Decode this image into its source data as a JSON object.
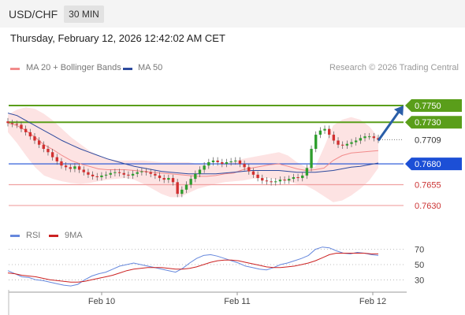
{
  "header": {
    "pair": "USD/CHF",
    "timeframe": "30 MIN"
  },
  "timestamp": "Thursday, February 12, 2026 12:42:02 AM CET",
  "legend": {
    "ma20": "MA 20 + Bollinger Bands",
    "ma50": "MA 50",
    "credit": "Research © 2026 Trading Central",
    "rsi": "RSI",
    "rsi_ma": "9MA"
  },
  "colors": {
    "ma20": "#f28b8b",
    "ma50": "#2e4a9e",
    "bands": "#fde3e3",
    "resistance": "#5a9e1a",
    "support": "#1c4fd6",
    "target": "#f0a0a0",
    "current": "#333333",
    "arrow": "#2a5ea8",
    "bull": "#2e9e2e",
    "bear": "#d23030",
    "rsi": "#6688dd",
    "rsi_ma": "#cc2222"
  },
  "chart_data": [
    {
      "type": "candlestick",
      "x_tick_labels": [
        "Feb 10",
        "Feb 11",
        "Feb 12"
      ],
      "ylim": [
        0.7612,
        0.7768
      ],
      "levels": [
        {
          "label": "0.7750",
          "value": 0.775,
          "kind": "resistance"
        },
        {
          "label": "0.7730",
          "value": 0.773,
          "kind": "resistance"
        },
        {
          "label": "0.7709",
          "value": 0.7709,
          "kind": "current"
        },
        {
          "label": "0.7680",
          "value": 0.768,
          "kind": "support"
        },
        {
          "label": "0.7655",
          "value": 0.7655,
          "kind": "target"
        },
        {
          "label": "0.7630",
          "value": 0.763,
          "kind": "target"
        }
      ],
      "close": [
        0.7729,
        0.7728,
        0.7727,
        0.7722,
        0.7718,
        0.7713,
        0.7708,
        0.7703,
        0.7698,
        0.7694,
        0.7688,
        0.7683,
        0.7678,
        0.7676,
        0.7674,
        0.7677,
        0.7673,
        0.767,
        0.7667,
        0.7665,
        0.7664,
        0.7666,
        0.7667,
        0.7669,
        0.767,
        0.7669,
        0.7667,
        0.7666,
        0.7668,
        0.767,
        0.7671,
        0.767,
        0.7668,
        0.7666,
        0.7663,
        0.7661,
        0.7663,
        0.7658,
        0.7644,
        0.7649,
        0.7655,
        0.7662,
        0.7668,
        0.7673,
        0.7678,
        0.7682,
        0.7684,
        0.7682,
        0.768,
        0.7682,
        0.7683,
        0.7684,
        0.768,
        0.7676,
        0.7671,
        0.7667,
        0.7663,
        0.766,
        0.7659,
        0.7658,
        0.7659,
        0.7661,
        0.766,
        0.7662,
        0.7664,
        0.7663,
        0.7666,
        0.7675,
        0.7698,
        0.7715,
        0.772,
        0.7722,
        0.7715,
        0.7708,
        0.7703,
        0.7702,
        0.7704,
        0.7706,
        0.7708,
        0.7711,
        0.7713,
        0.7713,
        0.7711,
        0.7709
      ],
      "ma20": [
        0.7729,
        0.7726,
        0.772,
        0.7712,
        0.7703,
        0.7697,
        0.769,
        0.7684,
        0.768,
        0.7677,
        0.7674,
        0.7673,
        0.7673,
        0.7673,
        0.7672,
        0.7671,
        0.767,
        0.7669,
        0.7668,
        0.7667,
        0.7666,
        0.7665,
        0.7665,
        0.7666,
        0.7668,
        0.7669,
        0.7673,
        0.7675,
        0.7677,
        0.7679,
        0.768,
        0.7677,
        0.7674,
        0.7672,
        0.7673,
        0.7675,
        0.7684,
        0.769,
        0.7693,
        0.7694,
        0.7695,
        0.7696
      ],
      "ma50": [
        0.7741,
        0.7738,
        0.7732,
        0.7726,
        0.772,
        0.7714,
        0.7708,
        0.7703,
        0.7698,
        0.7694,
        0.769,
        0.7686,
        0.7683,
        0.768,
        0.7677,
        0.7675,
        0.7673,
        0.7671,
        0.767,
        0.7669,
        0.7668,
        0.7668,
        0.7668,
        0.7668,
        0.7669,
        0.767,
        0.7671,
        0.7672,
        0.7672,
        0.7672,
        0.7672,
        0.7671,
        0.767,
        0.767,
        0.767,
        0.7671,
        0.7672,
        0.7674,
        0.7676,
        0.7677,
        0.7679,
        0.7681
      ],
      "band_upper": [
        0.7739,
        0.7745,
        0.7748,
        0.7746,
        0.774,
        0.7732,
        0.7722,
        0.7712,
        0.7704,
        0.7696,
        0.769,
        0.7686,
        0.7684,
        0.7684,
        0.7684,
        0.7684,
        0.7683,
        0.7682,
        0.7682,
        0.7682,
        0.7682,
        0.768,
        0.7678,
        0.7678,
        0.768,
        0.7683,
        0.7686,
        0.7688,
        0.769,
        0.7692,
        0.7694,
        0.769,
        0.7682,
        0.7676,
        0.7676,
        0.77,
        0.7726,
        0.7733,
        0.7736,
        0.7733,
        0.7725,
        0.7712
      ],
      "band_lower": [
        0.7718,
        0.7705,
        0.769,
        0.7676,
        0.7666,
        0.7662,
        0.7659,
        0.7657,
        0.7656,
        0.7657,
        0.7659,
        0.7661,
        0.7662,
        0.7663,
        0.7661,
        0.7656,
        0.765,
        0.7644,
        0.764,
        0.764,
        0.7645,
        0.765,
        0.7653,
        0.7656,
        0.7658,
        0.7659,
        0.766,
        0.7662,
        0.7663,
        0.7663,
        0.7661,
        0.7659,
        0.7656,
        0.7654,
        0.7648,
        0.7641,
        0.7634,
        0.7636,
        0.7642,
        0.765,
        0.766,
        0.7675
      ],
      "projection": {
        "from": 0.7708,
        "to": 0.775
      }
    },
    {
      "type": "line",
      "title": "RSI",
      "y_tick_labels": [
        "70",
        "50",
        "30"
      ],
      "ylim": [
        20,
        82
      ],
      "series": [
        {
          "name": "RSI",
          "values": [
            42,
            38,
            34,
            33,
            30,
            29,
            27,
            25,
            23,
            22,
            24,
            30,
            35,
            38,
            40,
            44,
            48,
            50,
            52,
            50,
            48,
            46,
            44,
            42,
            40,
            45,
            52,
            58,
            62,
            63,
            61,
            58,
            55,
            52,
            48,
            46,
            44,
            43,
            46,
            50,
            52,
            55,
            58,
            62,
            70,
            73,
            72,
            68,
            65,
            64,
            66,
            65,
            63,
            62
          ]
        },
        {
          "name": "9MA",
          "values": [
            39,
            38,
            36,
            35,
            34,
            32,
            30,
            29,
            28,
            27,
            27,
            28,
            30,
            32,
            34,
            36,
            39,
            42,
            44,
            45,
            46,
            46,
            46,
            45,
            44,
            44,
            45,
            47,
            50,
            53,
            55,
            56,
            56,
            55,
            53,
            51,
            49,
            47,
            46,
            46,
            47,
            48,
            50,
            52,
            55,
            59,
            63,
            65,
            65,
            65,
            65,
            65,
            64,
            64
          ]
        }
      ]
    }
  ]
}
